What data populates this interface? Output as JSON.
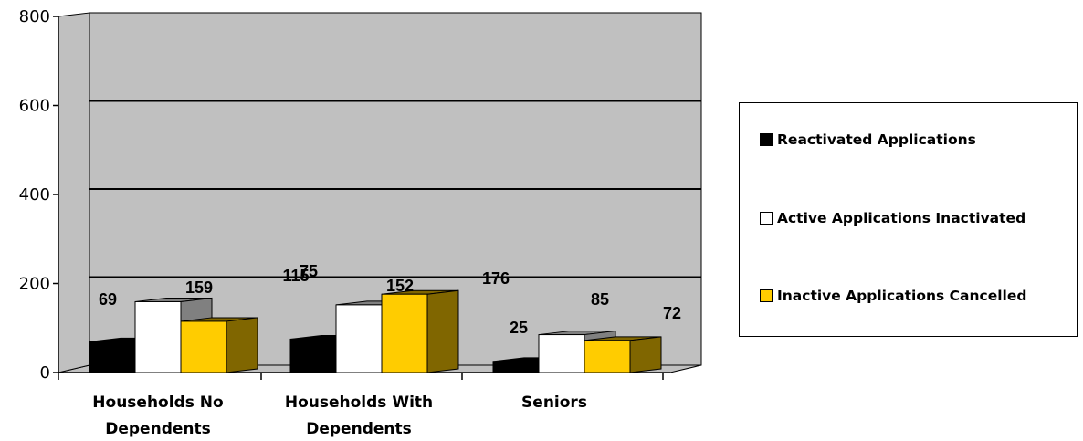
{
  "chart_data": {
    "type": "bar",
    "categories": [
      [
        "Households No",
        "Dependents"
      ],
      [
        "Households With",
        "Dependents"
      ],
      [
        "Seniors"
      ]
    ],
    "series": [
      {
        "name": "Reactivated Applications",
        "values": [
          69,
          75,
          25
        ],
        "color": "#000000",
        "side": "#000000",
        "top": "#000000"
      },
      {
        "name": "Active Applications Inactivated",
        "values": [
          159,
          152,
          85
        ],
        "color": "#ffffff",
        "side": "#808080",
        "top": "#808080"
      },
      {
        "name": "Inactive Applications Cancelled",
        "values": [
          115,
          176,
          72
        ],
        "color": "#ffcc00",
        "side": "#806600",
        "top": "#806600"
      }
    ],
    "ylim": [
      0,
      800
    ],
    "yticks": [
      0,
      200,
      400,
      600,
      800
    ],
    "grid": true,
    "legend_position": "right",
    "wall_color": "#c0c0c0"
  }
}
